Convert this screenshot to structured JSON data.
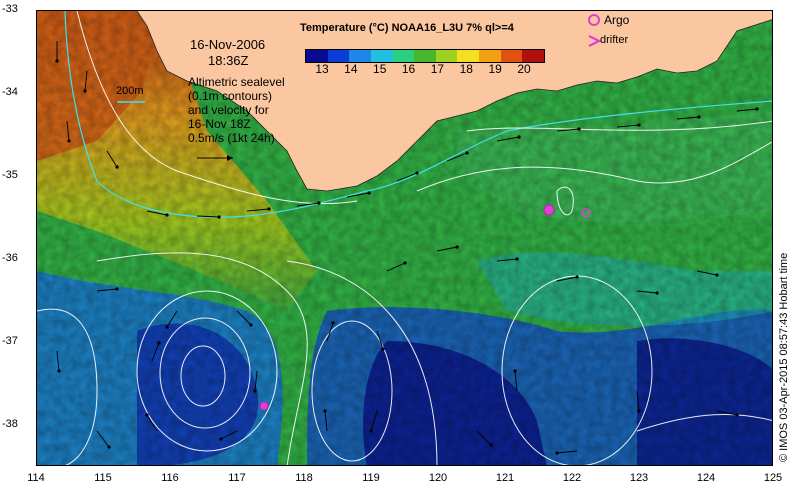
{
  "date_line1": "16-Nov-2006",
  "date_line2": "18:36Z",
  "scale_label": "200m",
  "altimetry_lines": [
    "Altimetric sealevel",
    "(0.1m contours)",
    "and velocity for",
    "16-Nov 18Z"
  ],
  "velocity_label": "0.5m/s (1kt 24h)",
  "colorbar": {
    "title": "Temperature (°C) NOAA16_L3U 7% ql>=4",
    "ticks": [
      "13",
      "14",
      "15",
      "16",
      "17",
      "18",
      "19",
      "20"
    ],
    "colors": [
      "#080a90",
      "#0c3cd8",
      "#1e86ea",
      "#22c0e0",
      "#28d080",
      "#46b82c",
      "#a0d020",
      "#f2e020",
      "#f0a010",
      "#e05010",
      "#b01010"
    ]
  },
  "legend": {
    "argo_label": "Argo",
    "drifter_label": "drifter",
    "argo_color": "#e040d0",
    "drifter_color": "#e040d0"
  },
  "axes": {
    "lat_ticks": [
      "-33",
      "-34",
      "-35",
      "-36",
      "-37",
      "-38"
    ],
    "lon_ticks": [
      "114",
      "115",
      "116",
      "117",
      "118",
      "119",
      "120",
      "121",
      "122",
      "123",
      "124",
      "125"
    ],
    "lon_range": [
      114,
      125
    ],
    "lat_range": [
      -38.5,
      -33
    ]
  },
  "credit": "© IMOS 03-Apr-2015 08:57:43 Hobart time"
}
